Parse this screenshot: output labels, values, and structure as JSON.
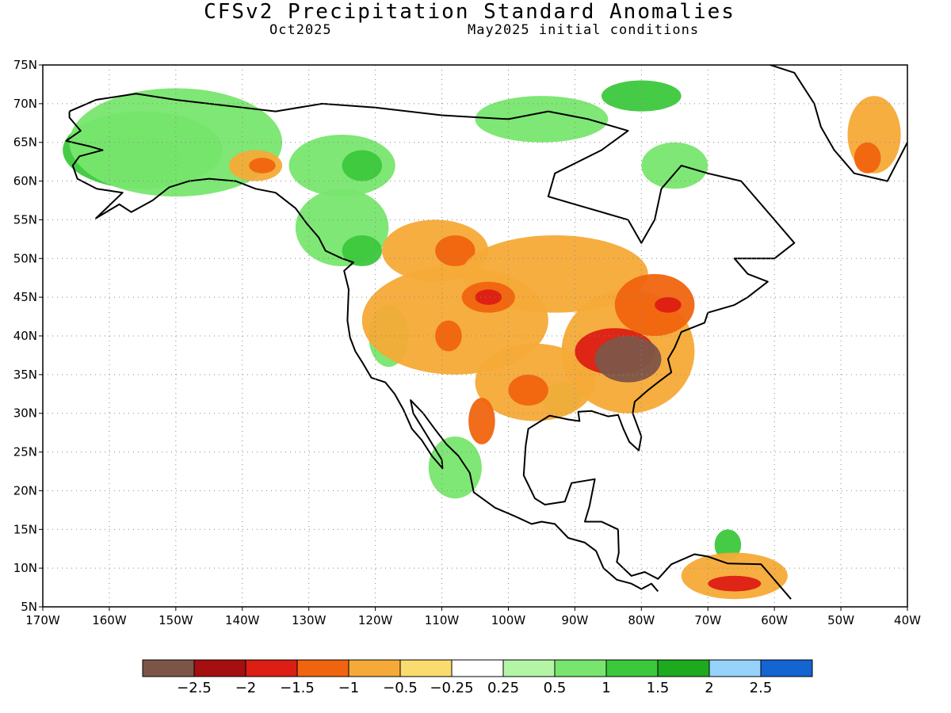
{
  "title": "CFSv2 Precipitation Standard Anomalies",
  "subtitle_left": "Oct2025",
  "subtitle_right": "May2025 initial conditions",
  "map": {
    "lon_range": [
      -170,
      -40
    ],
    "lat_range": [
      5,
      75
    ],
    "lat_ticks": [
      {
        "value": 75,
        "label": "75N"
      },
      {
        "value": 70,
        "label": "70N"
      },
      {
        "value": 65,
        "label": "65N"
      },
      {
        "value": 60,
        "label": "60N"
      },
      {
        "value": 55,
        "label": "55N"
      },
      {
        "value": 50,
        "label": "50N"
      },
      {
        "value": 45,
        "label": "45N"
      },
      {
        "value": 40,
        "label": "40N"
      },
      {
        "value": 35,
        "label": "35N"
      },
      {
        "value": 30,
        "label": "30N"
      },
      {
        "value": 25,
        "label": "25N"
      },
      {
        "value": 20,
        "label": "20N"
      },
      {
        "value": 15,
        "label": "15N"
      },
      {
        "value": 10,
        "label": "10N"
      },
      {
        "value": 5,
        "label": "5N"
      }
    ],
    "lon_ticks": [
      {
        "value": -170,
        "label": "170W"
      },
      {
        "value": -160,
        "label": "160W"
      },
      {
        "value": -150,
        "label": "150W"
      },
      {
        "value": -140,
        "label": "140W"
      },
      {
        "value": -130,
        "label": "130W"
      },
      {
        "value": -120,
        "label": "120W"
      },
      {
        "value": -110,
        "label": "110W"
      },
      {
        "value": -100,
        "label": "100W"
      },
      {
        "value": -90,
        "label": "90W"
      },
      {
        "value": -80,
        "label": "80W"
      },
      {
        "value": -70,
        "label": "70W"
      },
      {
        "value": -60,
        "label": "60W"
      },
      {
        "value": -50,
        "label": "50W"
      },
      {
        "value": -40,
        "label": "40W"
      }
    ],
    "grid": "dotted"
  },
  "colorbar": {
    "colors": [
      "#7d5548",
      "#a50f0f",
      "#dc1e14",
      "#f0640f",
      "#f5aa37",
      "#fadc6e",
      "#ffffff",
      "#b4f5a5",
      "#78e66e",
      "#3cc83c",
      "#1eaa1e",
      "#96d2fa",
      "#1464d2"
    ],
    "labels": [
      "−2.5",
      "−2",
      "−1.5",
      "−1",
      "−0.5",
      "−0.25",
      "0.25",
      "0.5",
      "1",
      "1.5",
      "2",
      "2.5"
    ]
  },
  "anomaly_regions": [
    {
      "level": 10,
      "lon": -157,
      "lat": 63,
      "rx": 8,
      "ry": 3
    },
    {
      "level": 9,
      "lon": -155,
      "lat": 64,
      "rx": 12,
      "ry": 5
    },
    {
      "level": 8,
      "lon": -150,
      "lat": 65,
      "rx": 16,
      "ry": 7
    },
    {
      "level": 8,
      "lon": -125,
      "lat": 62,
      "rx": 8,
      "ry": 4
    },
    {
      "level": 9,
      "lon": -122,
      "lat": 62,
      "rx": 3,
      "ry": 2
    },
    {
      "level": 8,
      "lon": -125,
      "lat": 54,
      "rx": 7,
      "ry": 5
    },
    {
      "level": 9,
      "lon": -122,
      "lat": 51,
      "rx": 3,
      "ry": 2
    },
    {
      "level": 8,
      "lon": -95,
      "lat": 68,
      "rx": 10,
      "ry": 3
    },
    {
      "level": 9,
      "lon": -80,
      "lat": 71,
      "rx": 6,
      "ry": 2
    },
    {
      "level": 8,
      "lon": -75,
      "lat": 62,
      "rx": 5,
      "ry": 3
    },
    {
      "level": 8,
      "lon": -118,
      "lat": 40,
      "rx": 3,
      "ry": 4
    },
    {
      "level": 8,
      "lon": -108,
      "lat": 23,
      "rx": 4,
      "ry": 4
    },
    {
      "level": 8,
      "lon": -92,
      "lat": 32,
      "rx": 3,
      "ry": 2
    },
    {
      "level": 9,
      "lon": -67,
      "lat": 13,
      "rx": 2,
      "ry": 2
    },
    {
      "level": 4,
      "lon": -138,
      "lat": 62,
      "rx": 4,
      "ry": 2
    },
    {
      "level": 3,
      "lon": -137,
      "lat": 62,
      "rx": 2,
      "ry": 1
    },
    {
      "level": 4,
      "lon": -111,
      "lat": 51,
      "rx": 8,
      "ry": 4
    },
    {
      "level": 3,
      "lon": -108,
      "lat": 51,
      "rx": 3,
      "ry": 2
    },
    {
      "level": 4,
      "lon": -108,
      "lat": 42,
      "rx": 14,
      "ry": 7
    },
    {
      "level": 4,
      "lon": -93,
      "lat": 48,
      "rx": 14,
      "ry": 5
    },
    {
      "level": 3,
      "lon": -103,
      "lat": 45,
      "rx": 4,
      "ry": 2
    },
    {
      "level": 2,
      "lon": -103,
      "lat": 45,
      "rx": 2,
      "ry": 1
    },
    {
      "level": 3,
      "lon": -109,
      "lat": 40,
      "rx": 2,
      "ry": 2
    },
    {
      "level": 4,
      "lon": -96,
      "lat": 34,
      "rx": 9,
      "ry": 5
    },
    {
      "level": 3,
      "lon": -97,
      "lat": 33,
      "rx": 3,
      "ry": 2
    },
    {
      "level": 4,
      "lon": -82,
      "lat": 38,
      "rx": 10,
      "ry": 8
    },
    {
      "level": 2,
      "lon": -84,
      "lat": 38,
      "rx": 6,
      "ry": 3
    },
    {
      "level": 0,
      "lon": -82,
      "lat": 37,
      "rx": 5,
      "ry": 3
    },
    {
      "level": 3,
      "lon": -78,
      "lat": 44,
      "rx": 6,
      "ry": 4
    },
    {
      "level": 2,
      "lon": -76,
      "lat": 44,
      "rx": 2,
      "ry": 1
    },
    {
      "level": 4,
      "lon": -66,
      "lat": 9,
      "rx": 8,
      "ry": 3
    },
    {
      "level": 2,
      "lon": -66,
      "lat": 8,
      "rx": 4,
      "ry": 1
    },
    {
      "level": 4,
      "lon": -45,
      "lat": 66,
      "rx": 4,
      "ry": 5
    },
    {
      "level": 3,
      "lon": -46,
      "lat": 63,
      "rx": 2,
      "ry": 2
    },
    {
      "level": 3,
      "lon": -104,
      "lat": 29,
      "rx": 2,
      "ry": 3
    }
  ]
}
